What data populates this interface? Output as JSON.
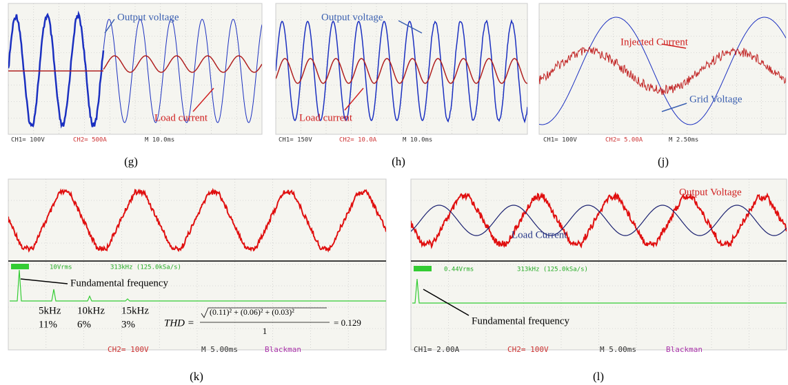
{
  "panels": [
    {
      "caption": "(g)",
      "annotations": [
        "Output voltage",
        "Load current"
      ],
      "readout": [
        "CH1= 100V",
        "CH2= 500A",
        "M 10.0ms"
      ]
    },
    {
      "caption": "(h)",
      "annotations": [
        "Output voltage",
        "Load current"
      ],
      "readout": [
        "CH1= 150V",
        "CH2= 10.0A",
        "M 10.0ms"
      ]
    },
    {
      "caption": "(j)",
      "annotations": [
        "Injected Current",
        "Grid Voltage"
      ],
      "readout": [
        "CH1= 100V",
        "CH2= 5.00A",
        "M 2.50ms"
      ]
    },
    {
      "caption": "(k)",
      "fft_readout": [
        "10Vrms",
        "313kHz (125.0kSa/s)"
      ],
      "annotations": [
        "Fundamental frequency"
      ],
      "harmonics": [
        {
          "freq": "5kHz",
          "pct": "11%"
        },
        {
          "freq": "10kHz",
          "pct": "6%"
        },
        {
          "freq": "15kHz",
          "pct": "3%"
        }
      ],
      "thd": {
        "label": "THD =",
        "numerator": "(0.11)² + (0.06)² + (0.03)²",
        "denominator": "1",
        "result": "= 0.129"
      },
      "readout": [
        "CH2= 100V",
        "M 5.00ms",
        "Blackman"
      ]
    },
    {
      "caption": "(l)",
      "fft_readout": [
        "0.44Vrms",
        "313kHz (125.0kSa/s)"
      ],
      "annotations": [
        "Output Voltage",
        "Load Current",
        "Fundamental frequency"
      ],
      "readout": [
        "CH1= 2.00A",
        "CH2= 100V",
        "M 5.00ms",
        "Blackman"
      ]
    }
  ]
}
